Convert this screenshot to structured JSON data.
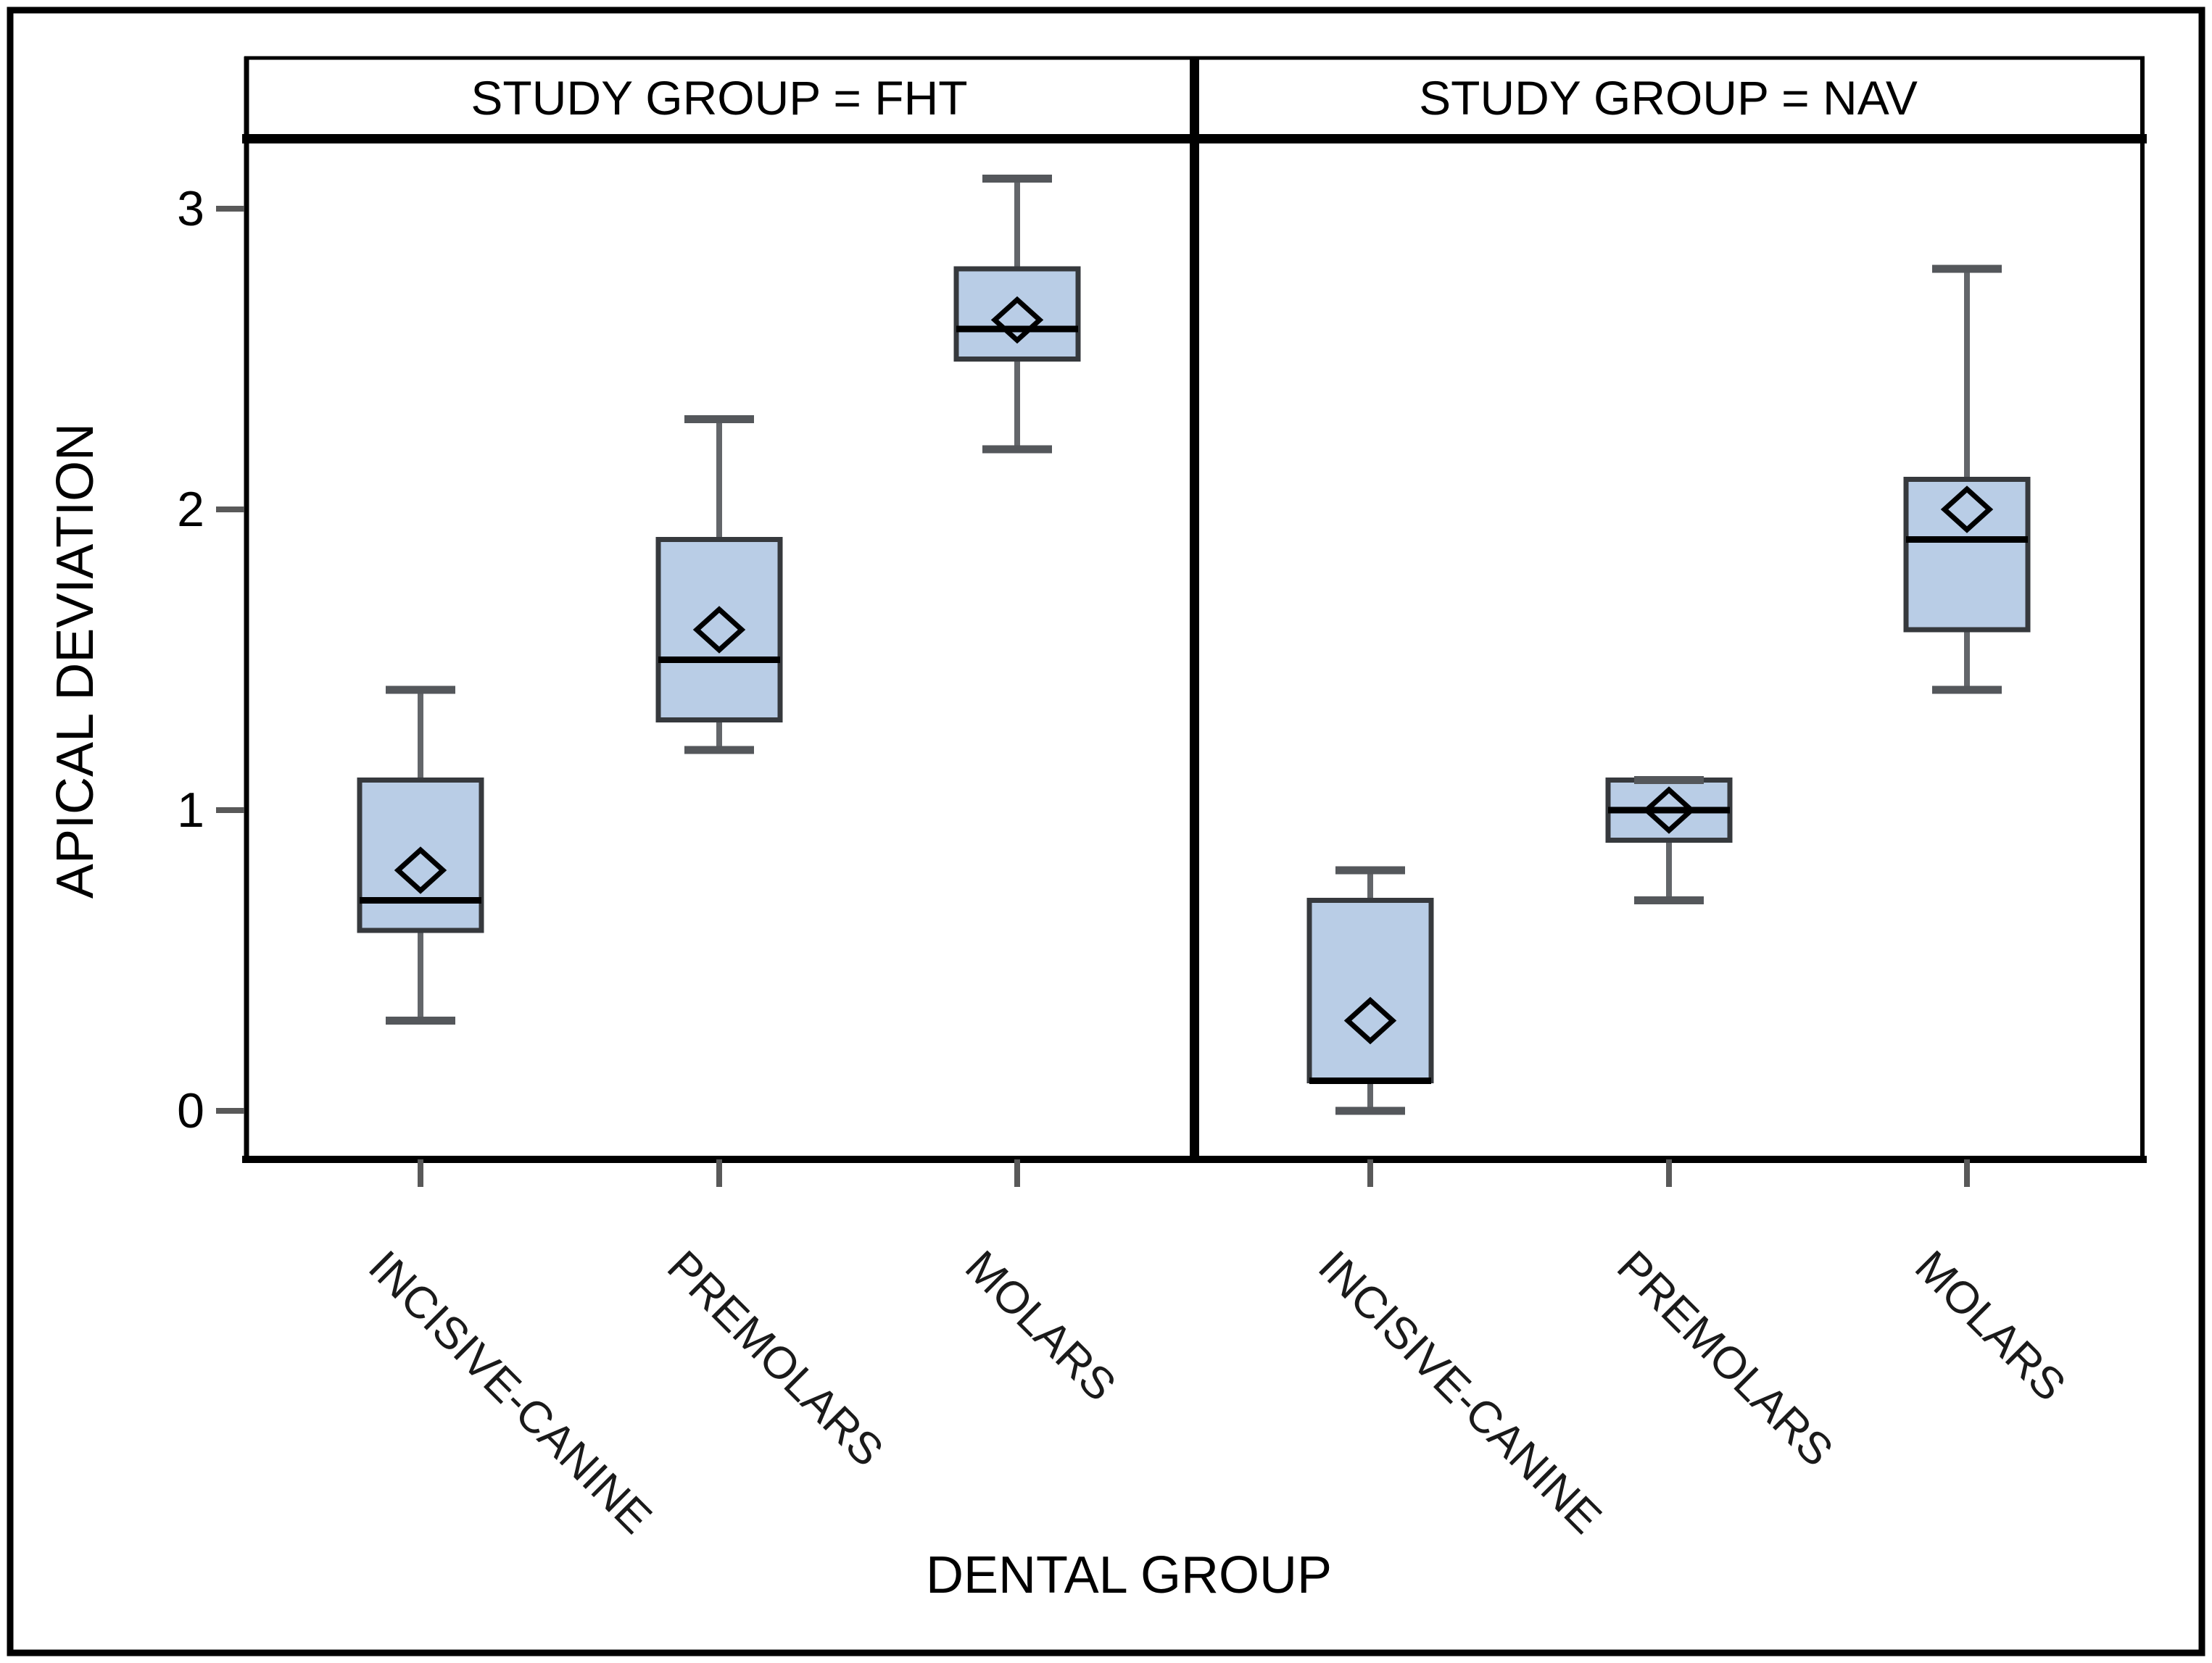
{
  "chart_data": {
    "type": "boxplot",
    "title": "",
    "ylabel": "APICAL DEVIATION",
    "xlabel": "DENTAL GROUP",
    "ylim": [
      -0.16,
      3.22
    ],
    "y_ticks": [
      0,
      1,
      2,
      3
    ],
    "grid": false,
    "legend": null,
    "categories": [
      "INCISIVE-CANINE",
      "PREMOLARS",
      "MOLARS"
    ],
    "panels": [
      {
        "header": "STUDY GROUP = FHT",
        "boxes": [
          {
            "category": "INCISIVE-CANINE",
            "whisker_low": 0.3,
            "q1": 0.6,
            "median": 0.7,
            "q3": 1.1,
            "whisker_high": 1.4,
            "mean": 0.8
          },
          {
            "category": "PREMOLARS",
            "whisker_low": 1.2,
            "q1": 1.3,
            "median": 1.5,
            "q3": 1.9,
            "whisker_high": 2.3,
            "mean": 1.6
          },
          {
            "category": "MOLARS",
            "whisker_low": 2.2,
            "q1": 2.5,
            "median": 2.6,
            "q3": 2.8,
            "whisker_high": 3.1,
            "mean": 2.63
          }
        ]
      },
      {
        "header": "STUDY GROUP = NAV",
        "boxes": [
          {
            "category": "INCISIVE-CANINE",
            "whisker_low": 0.0,
            "q1": 0.1,
            "median": 0.1,
            "q3": 0.7,
            "whisker_high": 0.8,
            "mean": 0.3
          },
          {
            "category": "PREMOLARS",
            "whisker_low": 0.7,
            "q1": 0.9,
            "median": 1.0,
            "q3": 1.1,
            "whisker_high": 1.1,
            "mean": 1.0
          },
          {
            "category": "MOLARS",
            "whisker_low": 1.4,
            "q1": 1.6,
            "median": 1.9,
            "q3": 2.1,
            "whisker_high": 2.8,
            "mean": 2.0
          }
        ]
      }
    ],
    "colors": {
      "box_fill": "#b9cde6",
      "box_edge": "#36393d",
      "median": "#000000",
      "whisker": "#63666a",
      "whisker_cap": "#54575b",
      "mean_diamond": "#000000",
      "frame": "#000000",
      "tick": "#595959"
    }
  }
}
